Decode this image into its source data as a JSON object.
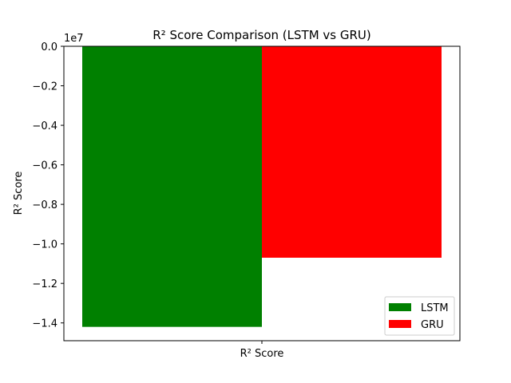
{
  "chart_data": {
    "type": "bar",
    "title": "R² Score Comparison (LSTM vs GRU)",
    "xlabel": "",
    "ylabel": "R² Score",
    "categories": [
      "R² Score"
    ],
    "series": [
      {
        "name": "LSTM",
        "values": [
          -14200000
        ],
        "color": "#008000"
      },
      {
        "name": "GRU",
        "values": [
          -10700000
        ],
        "color": "#ff0000"
      }
    ],
    "ylim": [
      -14900000,
      0
    ],
    "yticks": [
      0,
      -2000000,
      -4000000,
      -6000000,
      -8000000,
      -10000000,
      -12000000,
      -14000000
    ],
    "ytick_labels": [
      "0.0",
      "−0.2",
      "−0.4",
      "−0.6",
      "−0.8",
      "−1.0",
      "−1.2",
      "−1.4"
    ],
    "y_offset_label": "1e7",
    "grid": false,
    "legend_position": "lower-right"
  }
}
